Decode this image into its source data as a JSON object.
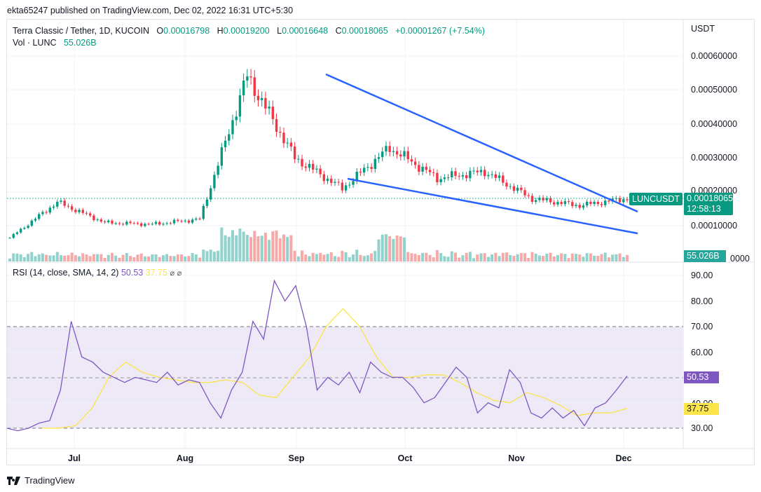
{
  "publish_line": "ekta65247 published on TradingView.com, Dec 02, 2022 16:31 UTC+5:30",
  "legend": {
    "symbol": "Terra Classic / Tether, 1D, KUCOIN",
    "o_label": "O",
    "o_value": "0.00016798",
    "h_label": "H",
    "h_value": "0.00019200",
    "l_label": "L",
    "l_value": "0.00016648",
    "c_label": "C",
    "c_value": "0.00018065",
    "change": "+0.00001267 (+7.54%)",
    "vol_label": "Vol · LUNC",
    "vol_value": "55.026B"
  },
  "rsi_legend": {
    "label": "RSI (14, close, SMA, 14, 2)",
    "rsi_value": "50.53",
    "sma_value": "37.75",
    "icon1": "⌀",
    "icon2": "⌀"
  },
  "price_axis": {
    "currency": "USDT",
    "ticks": [
      "0.00060000",
      "0.00050000",
      "0.00040000",
      "0.00030000",
      "0.00020000",
      "0.00010000",
      "0000"
    ]
  },
  "rsi_axis": {
    "ticks": [
      "90.00",
      "80.00",
      "70.00",
      "60.00",
      "40.00",
      "30.00"
    ]
  },
  "tags": {
    "symbol_tag": "LUNCUSDT",
    "last_price": "0.00018065",
    "countdown": "12:58:13",
    "volume": "55.026B",
    "rsi": "50.53",
    "rsi_sma": "37.75"
  },
  "time_axis": [
    "Jul",
    "Aug",
    "Sep",
    "Oct",
    "Nov",
    "Dec"
  ],
  "footer": {
    "brand": "TradingView"
  },
  "colors": {
    "up": "#089981",
    "down": "#f23645",
    "vol_up": "#92d2cc",
    "vol_down": "#f7a9a7",
    "trendline": "#2962ff",
    "rsi": "#7e57c2",
    "rsi_sma": "#fbe54a",
    "rsi_band": "#ede9f7",
    "tag_green": "#089981"
  },
  "chart_data": [
    {
      "type": "candlestick",
      "title": "Terra Classic / Tether, 1D, KUCOIN",
      "xlabel": "",
      "ylabel": "USDT",
      "x_ticks": [
        "Jul",
        "Aug",
        "Sep",
        "Oct",
        "Nov",
        "Dec"
      ],
      "ylim": [
        0.0,
        0.00062
      ],
      "y_ticks": [
        0.0001,
        0.0002,
        0.0003,
        0.0004,
        0.0005,
        0.0006
      ],
      "grid": true,
      "last": {
        "open": 0.00016798,
        "high": 0.000192,
        "low": 0.00016648,
        "close": 0.00018065,
        "change": 1.267e-05,
        "change_pct": 7.54
      },
      "approx_close_by_period": [
        {
          "period": "mid-Jun",
          "close": 6.5e-05
        },
        {
          "period": "late-Jun peak",
          "close": 0.00017
        },
        {
          "period": "Jul",
          "close": 0.00011
        },
        {
          "period": "Aug",
          "close": 0.000105
        },
        {
          "period": "late-Aug",
          "close": 0.00012
        },
        {
          "period": "early-Sep peak",
          "close": 0.00054,
          "high": 0.00059
        },
        {
          "period": "mid-Sep",
          "close": 0.0003
        },
        {
          "period": "late-Sep",
          "close": 0.00021
        },
        {
          "period": "early-Oct",
          "close": 0.00033
        },
        {
          "period": "late-Oct",
          "close": 0.00024
        },
        {
          "period": "early-Nov",
          "close": 0.00026
        },
        {
          "period": "mid-Nov",
          "close": 0.00018
        },
        {
          "period": "late-Nov",
          "close": 0.00016
        },
        {
          "period": "Dec 02",
          "close": 0.00018065
        }
      ],
      "annotations": [
        {
          "type": "trendline",
          "desc": "upper falling wedge line from Sep peak (~0.00055) to early Dec (~0.00014)"
        },
        {
          "type": "trendline",
          "desc": "lower falling wedge line from mid-Sep (~0.00024) to early Dec (~0.00008)"
        }
      ]
    },
    {
      "type": "bar",
      "title": "Vol · LUNC",
      "last_value": "55.026B",
      "note": "volume histogram overlay at bottom of price pane; highest bars late Jun and early Sep"
    },
    {
      "type": "line",
      "title": "RSI (14, close, SMA, 14, 2)",
      "ylim": [
        27,
        93
      ],
      "y_ticks": [
        30,
        40,
        50,
        60,
        70,
        80,
        90
      ],
      "band": [
        30,
        70
      ],
      "series": [
        {
          "name": "RSI",
          "last": 50.53,
          "approx_values": [
            30,
            29,
            30,
            32,
            33,
            45,
            72,
            58,
            56,
            52,
            50,
            48,
            50,
            49,
            48,
            52,
            47,
            49,
            48,
            40,
            34,
            45,
            52,
            72,
            65,
            88,
            80,
            86,
            70,
            45,
            50,
            47,
            52,
            44,
            56,
            52,
            50,
            50,
            46,
            40,
            42,
            48,
            54,
            50,
            36,
            40,
            38,
            53,
            48,
            36,
            34,
            38,
            34,
            37,
            31,
            38,
            40,
            45,
            50.53
          ]
        },
        {
          "name": "RSI-SMA",
          "last": 37.75,
          "approx_values": [
            30,
            30,
            31,
            38,
            50,
            56,
            52,
            50,
            49,
            48,
            48,
            49,
            48,
            43,
            42,
            50,
            58,
            70,
            77,
            70,
            58,
            50,
            50,
            51,
            51,
            48,
            44,
            41,
            40,
            44,
            42,
            39,
            35,
            36,
            36,
            37.75
          ]
        }
      ]
    }
  ]
}
